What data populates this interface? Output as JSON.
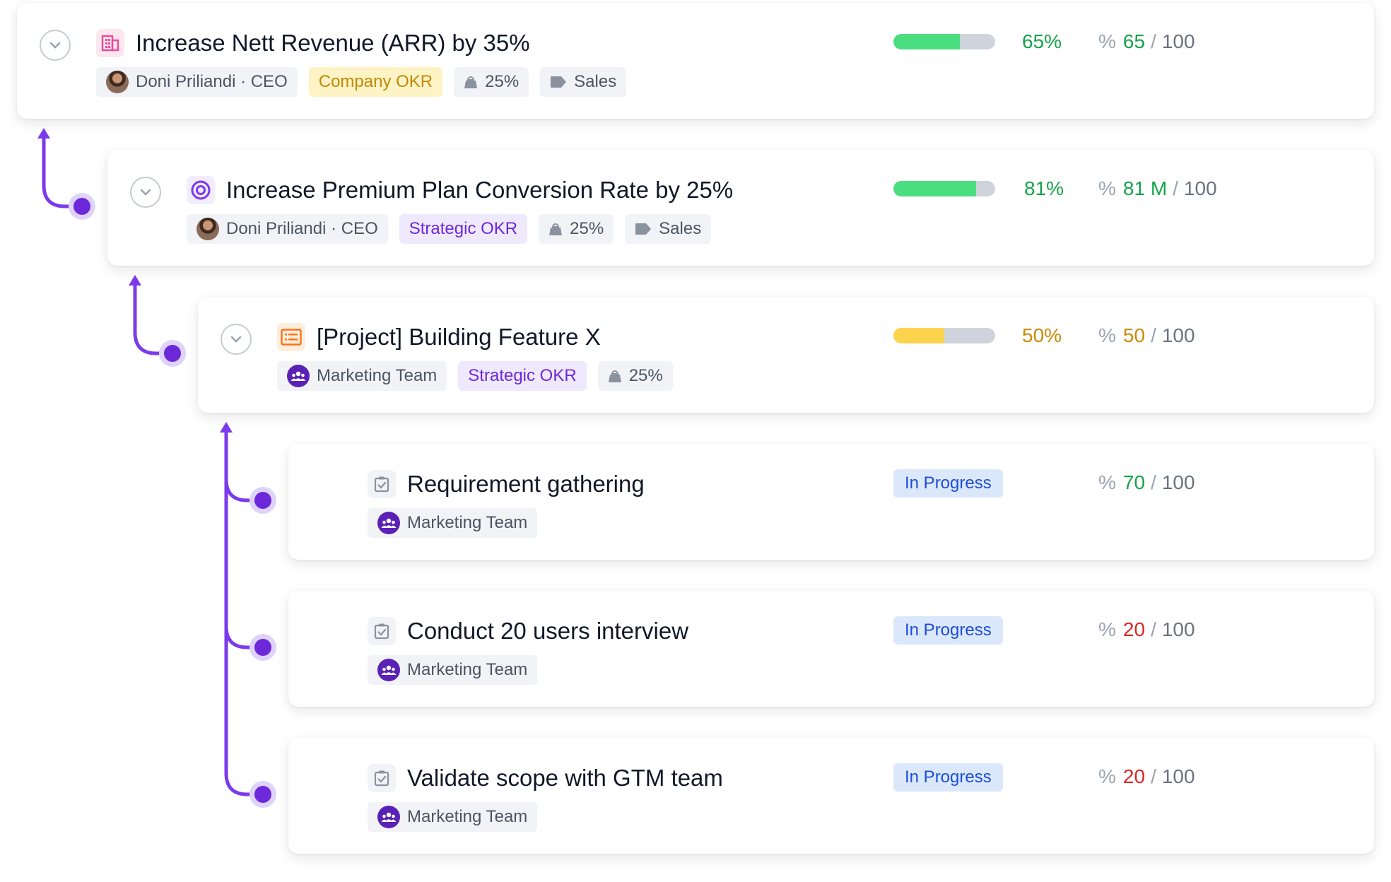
{
  "colors": {
    "accent": "#7c3aed",
    "green": "#16a34a",
    "bar_green": "#4ade80",
    "bar_yellow": "#fcd34d",
    "red": "#dc2626",
    "status_bg": "#dbe8fb"
  },
  "items": [
    {
      "title": "Increase Nett Revenue (ARR) by 35%",
      "icon": "building-icon",
      "owner": "Doni Priliandi · CEO",
      "okr_type": "Company OKR",
      "weight": "25%",
      "label": "Sales",
      "progress": 65,
      "progress_text": "65%",
      "score_symbol": "%",
      "score": "65",
      "score_max": "100"
    },
    {
      "title": "Increase Premium Plan Conversion Rate by 25%",
      "icon": "target-icon",
      "owner": "Doni Priliandi · CEO",
      "okr_type": "Strategic OKR",
      "weight": "25%",
      "label": "Sales",
      "progress": 81,
      "progress_text": "81%",
      "score_symbol": "%",
      "score": "81 M",
      "score_max": "100"
    },
    {
      "title": "[Project] Building Feature X",
      "icon": "project-icon",
      "owner": "Marketing Team",
      "okr_type": "Strategic OKR",
      "weight": "25%",
      "progress": 50,
      "progress_text": "50%",
      "score_symbol": "%",
      "score": "50",
      "score_max": "100"
    },
    {
      "title": "Requirement gathering",
      "icon": "task-check-icon",
      "owner": "Marketing Team",
      "status": "In Progress",
      "score_symbol": "%",
      "score": "70",
      "score_max": "100"
    },
    {
      "title": "Conduct 20 users interview",
      "icon": "task-check-icon",
      "owner": "Marketing Team",
      "status": "In Progress",
      "score_symbol": "%",
      "score": "20",
      "score_max": "100"
    },
    {
      "title": "Validate scope with GTM team",
      "icon": "task-check-icon",
      "owner": "Marketing Team",
      "status": "In Progress",
      "score_symbol": "%",
      "score": "20",
      "score_max": "100"
    }
  ]
}
